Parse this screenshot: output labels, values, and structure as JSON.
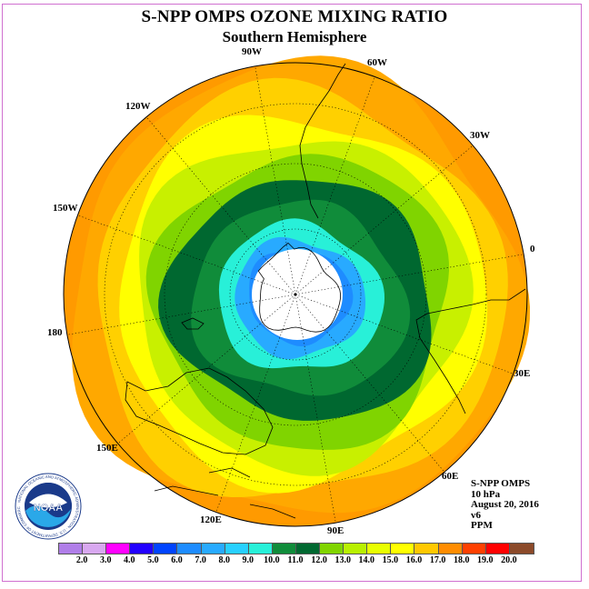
{
  "header": {
    "title": "S-NPP OMPS OZONE MIXING RATIO",
    "subtitle": "Southern Hemisphere"
  },
  "longitude_labels": [
    "90W",
    "60W",
    "30W",
    "0",
    "30E",
    "60E",
    "90E",
    "120E",
    "150E",
    "180",
    "150W",
    "120W"
  ],
  "info": {
    "instrument": "S-NPP OMPS",
    "level": "10 hPa",
    "date": "August 20, 2016",
    "version": "v6",
    "units": "PPM"
  },
  "logo": {
    "text": "NOAA",
    "ring_text": "NATIONAL OCEANIC AND ATMOSPHERIC ADMINISTRATION · U.S. DEPARTMENT OF COMMERCE"
  },
  "colorbar": {
    "ticks": [
      "2.0",
      "3.0",
      "4.0",
      "5.0",
      "6.0",
      "7.0",
      "8.0",
      "9.0",
      "10.0",
      "11.0",
      "12.0",
      "13.0",
      "14.0",
      "15.0",
      "16.0",
      "17.0",
      "18.0",
      "19.0",
      "20.0"
    ],
    "colors": [
      "#b07ee8",
      "#d8a8f0",
      "#ff00ff",
      "#2200ff",
      "#0044ff",
      "#1e8cff",
      "#28aaff",
      "#28d0ff",
      "#28f0d8",
      "#108c3a",
      "#006830",
      "#80d400",
      "#b8f000",
      "#e8ff00",
      "#ffff00",
      "#ffc800",
      "#ff8c00",
      "#ff4000",
      "#ff0000",
      "#8b4a2a"
    ]
  },
  "map_colors": {
    "land_outline": "#000000",
    "pole_fill": "#ffffff"
  },
  "field_bands": [
    {
      "value": 16.5,
      "color": "#ffa800"
    },
    {
      "value": 15.5,
      "color": "#ffd000"
    },
    {
      "value": 14.5,
      "color": "#ffff00"
    },
    {
      "value": 13.5,
      "color": "#c8f000"
    },
    {
      "value": 12.5,
      "color": "#80d400"
    },
    {
      "value": 11.5,
      "color": "#006830"
    },
    {
      "value": 10.5,
      "color": "#108c3a"
    },
    {
      "value": 9.5,
      "color": "#28f0d8"
    },
    {
      "value": 8.5,
      "color": "#28aaff"
    },
    {
      "value": 7.5,
      "color": "#1e8cff"
    }
  ]
}
